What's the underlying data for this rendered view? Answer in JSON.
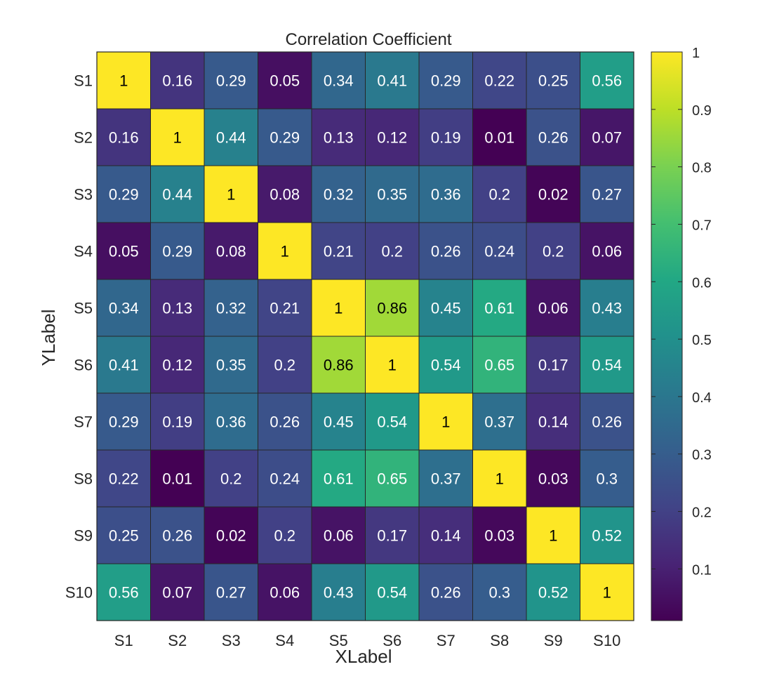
{
  "chart_data": {
    "type": "heatmap",
    "title": "Correlation Coefficient",
    "xlabel": "XLabel",
    "ylabel": "YLabel",
    "x_categories": [
      "S1",
      "S2",
      "S3",
      "S4",
      "S5",
      "S6",
      "S7",
      "S8",
      "S9",
      "S10"
    ],
    "y_categories": [
      "S1",
      "S2",
      "S3",
      "S4",
      "S5",
      "S6",
      "S7",
      "S8",
      "S9",
      "S10"
    ],
    "values": [
      [
        1,
        0.16,
        0.29,
        0.05,
        0.34,
        0.41,
        0.29,
        0.22,
        0.25,
        0.56
      ],
      [
        0.16,
        1,
        0.44,
        0.29,
        0.13,
        0.12,
        0.19,
        0.01,
        0.26,
        0.07
      ],
      [
        0.29,
        0.44,
        1,
        0.08,
        0.32,
        0.35,
        0.36,
        0.2,
        0.02,
        0.27
      ],
      [
        0.05,
        0.29,
        0.08,
        1,
        0.21,
        0.2,
        0.26,
        0.24,
        0.2,
        0.06
      ],
      [
        0.34,
        0.13,
        0.32,
        0.21,
        1,
        0.86,
        0.45,
        0.61,
        0.06,
        0.43
      ],
      [
        0.41,
        0.12,
        0.35,
        0.2,
        0.86,
        1,
        0.54,
        0.65,
        0.17,
        0.54
      ],
      [
        0.29,
        0.19,
        0.36,
        0.26,
        0.45,
        0.54,
        1,
        0.37,
        0.14,
        0.26
      ],
      [
        0.22,
        0.01,
        0.2,
        0.24,
        0.61,
        0.65,
        0.37,
        1,
        0.03,
        0.3
      ],
      [
        0.25,
        0.26,
        0.02,
        0.2,
        0.06,
        0.17,
        0.14,
        0.03,
        1,
        0.52
      ],
      [
        0.56,
        0.07,
        0.27,
        0.06,
        0.43,
        0.54,
        0.26,
        0.3,
        0.52,
        1
      ]
    ],
    "colormap": "viridis",
    "colorbar": {
      "range": [
        0.01,
        1
      ],
      "ticks": [
        0.1,
        0.2,
        0.3,
        0.4,
        0.5,
        0.6,
        0.7,
        0.8,
        0.9,
        1
      ],
      "tick_labels": [
        "0.1",
        "0.2",
        "0.3",
        "0.4",
        "0.5",
        "0.6",
        "0.7",
        "0.8",
        "0.9",
        "1"
      ]
    },
    "grid": false,
    "legend": "colorbar-right"
  }
}
